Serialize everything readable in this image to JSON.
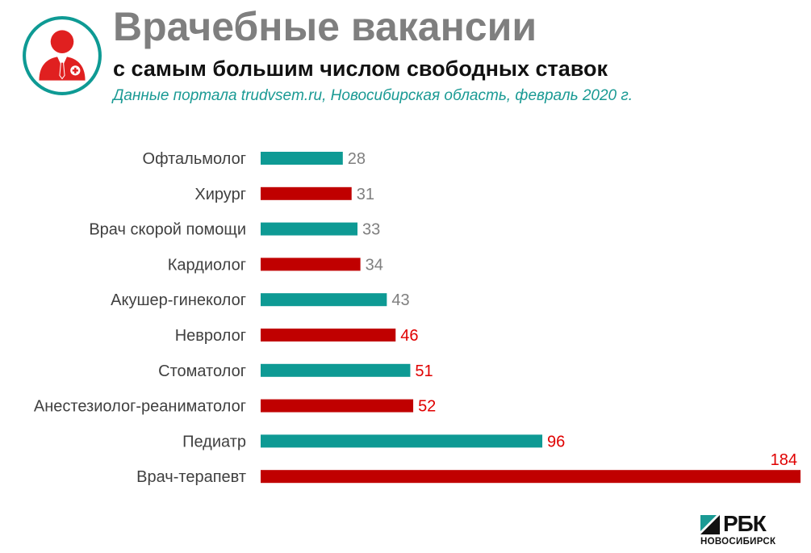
{
  "header": {
    "title": "Врачебные вакансии",
    "subtitle": "с самым большим числом свободных ставок",
    "source": "Данные портала trudvsem.ru, Новосибирская область, февраль 2020 г.",
    "icon": "doctor-icon"
  },
  "colors": {
    "teal": "#0e9a94",
    "red": "#c00000",
    "label_gray": "#7f7f7f",
    "label_red": "#e00000"
  },
  "chart_data": {
    "type": "bar",
    "orientation": "horizontal",
    "categories": [
      "Офтальмолог",
      "Хирург",
      "Врач скорой помощи",
      "Кардиолог",
      "Акушер-гинеколог",
      "Невролог",
      "Стоматолог",
      "Анестезиолог-реаниматолог",
      "Педиатр",
      "Врач-терапевт"
    ],
    "values": [
      28,
      31,
      33,
      34,
      43,
      46,
      51,
      52,
      96,
      184
    ],
    "bar_colors": [
      "teal",
      "red",
      "teal",
      "red",
      "teal",
      "red",
      "teal",
      "red",
      "teal",
      "red"
    ],
    "label_colors": [
      "gray",
      "gray",
      "gray",
      "gray",
      "gray",
      "red",
      "red",
      "red",
      "red",
      "red"
    ],
    "xlim": [
      0,
      184
    ],
    "grid": false,
    "legend": "none"
  },
  "brand": {
    "name": "РБК",
    "city": "НОВОСИБИРСК"
  }
}
